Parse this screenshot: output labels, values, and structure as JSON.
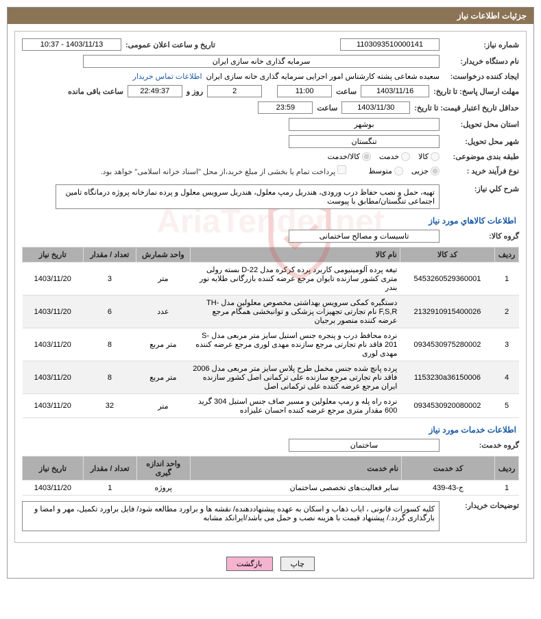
{
  "title": "جزئیات اطلاعات نیاز",
  "labels": {
    "need_no": "شماره نیاز:",
    "announce_dt": "تاریخ و ساعت اعلان عمومی:",
    "org": "نام دستگاه خریدار:",
    "creator": "ایجاد کننده درخواست:",
    "deadline": "مهلت ارسال پاسخ: تا تاریخ:",
    "hour": "ساعت",
    "days_and": "روز و",
    "remain": "ساعت باقی مانده",
    "valid": "حداقل تاریخ اعتبار قیمت: تا تاریخ:",
    "state": "استان محل تحویل:",
    "city": "شهر محل تحویل:",
    "class": "طبقه بندی موضوعی:",
    "proc": "نوع فرآیند خرید :",
    "islamic": "پرداخت تمام یا بخشی از مبلغ خرید،از محل \"اسناد خزانه اسلامی\" خواهد بود.",
    "desc": "شرح کلي نياز:",
    "sec1": "اطلاعات کالاهاي مورد نياز",
    "goods_grp": "گروه کالا:",
    "sec2": "اطلاعات خدمات مورد نیاز",
    "svc_grp": "گروه خدمت:",
    "buyer_desc": "توضیحات خریدار:"
  },
  "fields": {
    "need_no": "1103093510000141",
    "announce_dt": "1403/11/13 - 10:37",
    "org": "سرمایه گذاری خانه سازی ایران",
    "creator": "سعیده شعاعی پشته کارشناس امور اجرایی سرمایه گذاری خانه سازی ایران",
    "contact": "اطلاعات تماس خریدار",
    "deadline_date": "1403/11/16",
    "deadline_time": "11:00",
    "days": "2",
    "timer": "22:49:37",
    "valid_date": "1403/11/30",
    "valid_time": "23:59",
    "state": "بوشهر",
    "city": "تنگستان",
    "r_goods": "کالا",
    "r_svc": "خدمت",
    "r_both": "کالا/خدمت",
    "r_partial": "جزیی",
    "r_medium": "متوسط",
    "desc": "تهیه، حمل و نصب حفاظ درب ورودی، هندریل رمپ معلول، هندریل سرویس معلول و پرده نمازخانه پروژه درمانگاه تامین اجتماعی تنگستان/مطابق با پیوست",
    "goods_grp": "تاسیسات و مصالح ساختمانی",
    "svc_grp": "ساختمان",
    "buyer_desc": "کلیه کسورات قانونی ، ایاب ذهاب و اسکان به عهده پیشنهاددهنده/ نقشه ها و براورد مطالعه شود/ فایل براورد تکمیل، مهر و امضا و بارگذاری گردد./ پیشنهاد قیمت با هزینه نصب و حمل می باشد/ایرانکد مشابه"
  },
  "th": {
    "idx": "رديف",
    "gcode": "کد کالا",
    "gname": "نام کالا",
    "unit": "واحد شمارش",
    "qty": "تعداد / مقدار",
    "ndate": "تاریخ نیاز",
    "scode": "کد خدمت",
    "sname": "نام خدمت",
    "munit": "واحد اندازه گیری"
  },
  "goods": [
    {
      "idx": "1",
      "code": "5453260529360001",
      "name": "تیغه پرده آلومینیومی کاربرد پرده کرکره مدل D-22 بسته رولی متری کشور سازنده تایوان مرجع عرضه کننده بازرگانی طلایه نور بندر",
      "unit": "متر",
      "qty": "3",
      "date": "1403/11/20"
    },
    {
      "idx": "2",
      "code": "2132910915400026",
      "name": "دستگیره کمکی سرویس بهداشتی مخصوص معلولین مدل -TH F,S,R نام تجارتی تجهیزات پزشکی و توانبخشی همگام مرجع عرضه کننده منصور برجیان",
      "unit": "عدد",
      "qty": "6",
      "date": "1403/11/20"
    },
    {
      "idx": "3",
      "code": "0934530975280002",
      "name": "نرده محافظ درب و پنجره جنس استیل سایز متر مربعی مدل -S 201 فاقد نام تجارتی مرجع سازنده مهدی لوری مرجع عرضه کننده مهدی لوری",
      "unit": "متر مربع",
      "qty": "8",
      "date": "1403/11/20"
    },
    {
      "idx": "4",
      "code": "1153230a36150006",
      "name": "پرده پانچ شده جنس مخمل طرح پلاس سایز متر مربعی مدل 2006 فاقد نام تجارتی مرجع سازنده علی ترکمانی اصل کشور سازنده ایران مرجع عرضه کننده علی ترکمانی اصل",
      "unit": "متر مربع",
      "qty": "8",
      "date": "1403/11/20"
    },
    {
      "idx": "5",
      "code": "0934530920080002",
      "name": "نرده راه پله و رمپ معلولین و مسیر صاف جنس استیل 304 گرید 600 مقدار متری مرجع عرضه کننده احسان علیزاده",
      "unit": "متر",
      "qty": "32",
      "date": "1403/11/20"
    }
  ],
  "svcs": [
    {
      "idx": "1",
      "code": "ج-43-439",
      "name": "سایر فعالیت‌های تخصصی ساختمان",
      "unit": "پروژه",
      "qty": "1",
      "date": "1403/11/20"
    }
  ],
  "btn": {
    "print": "چاپ",
    "back": "بازگشت"
  },
  "watermark": "AriaTender.net",
  "colors": {
    "header": "#8b7355",
    "link": "#1a5aa8",
    "th": "#b0b0b0",
    "back_btn": "#f4b4d0"
  }
}
